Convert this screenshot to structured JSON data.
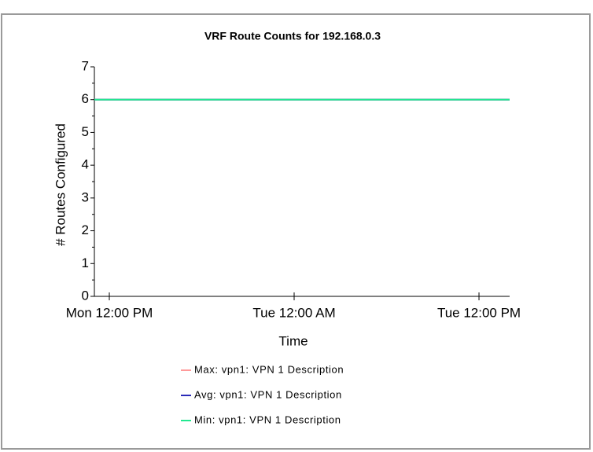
{
  "chart_data": {
    "type": "line",
    "title": "VRF Route Counts for 192.168.0.3",
    "xlabel": "Time",
    "ylabel": "# Routes Configured",
    "x": [
      11.03,
      37.99
    ],
    "xlim": [
      11.03,
      37.99
    ],
    "xticks": [
      {
        "value": 12,
        "label": "Mon 12:00 PM"
      },
      {
        "value": 24,
        "label": "Tue 12:00 AM"
      },
      {
        "value": 36,
        "label": "Tue 12:00 PM"
      }
    ],
    "ylim": [
      0,
      7
    ],
    "yticks": [
      0,
      1,
      2,
      3,
      4,
      5,
      6,
      7
    ],
    "series": [
      {
        "name": "Max:  vpn1: VPN 1 Description",
        "color": "#ff9a9a",
        "values": [
          6,
          6
        ]
      },
      {
        "name": "Avg:  vpn1: VPN 1 Description",
        "color": "#2b2bb8",
        "values": [
          6,
          6
        ]
      },
      {
        "name": "Min:  vpn1: VPN 1 Description",
        "color": "#22e890",
        "values": [
          6,
          6
        ]
      }
    ]
  }
}
